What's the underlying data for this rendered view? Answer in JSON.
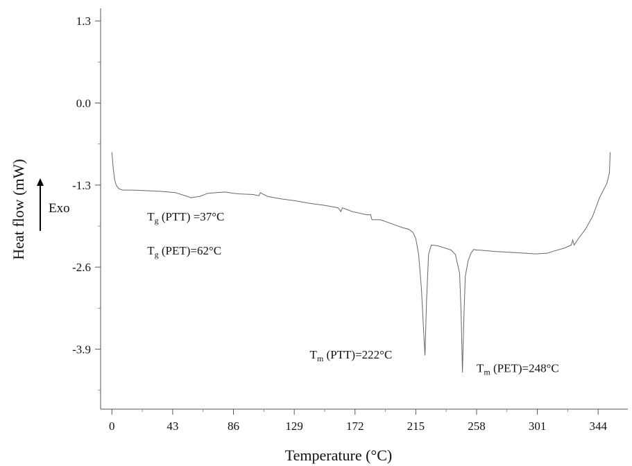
{
  "chart_data": {
    "type": "line",
    "xlabel": "Temperature (°C)",
    "ylabel": "Heat flow (mW)",
    "xlim": [
      -8,
      365
    ],
    "ylim": [
      -4.85,
      1.5
    ],
    "x_ticks": [
      0,
      43,
      86,
      129,
      172,
      215,
      258,
      301,
      344
    ],
    "y_ticks": [
      1.3,
      0.0,
      -1.3,
      -2.6,
      -3.9
    ],
    "grid": false,
    "series": [
      {
        "color": "#666666",
        "x": [
          0,
          1,
          2,
          3,
          5,
          8,
          15,
          25,
          35,
          45,
          52,
          56,
          62,
          68,
          74,
          80,
          86,
          90,
          100,
          104,
          105,
          110,
          120,
          130,
          140,
          150,
          160,
          162,
          163,
          170,
          180,
          183,
          184,
          190,
          200,
          205,
          210,
          213,
          215,
          217,
          219,
          220.5,
          221.5,
          222.5,
          224,
          226,
          230,
          236,
          240,
          243,
          246,
          247,
          248,
          249,
          250,
          252,
          254,
          256,
          258,
          260,
          270,
          285,
          300,
          308,
          312,
          320,
          325,
          326,
          327,
          330,
          335,
          340,
          345,
          350,
          351,
          352,
          352.5
        ],
        "values": [
          -0.78,
          -1.05,
          -1.22,
          -1.3,
          -1.36,
          -1.38,
          -1.38,
          -1.39,
          -1.4,
          -1.42,
          -1.47,
          -1.5,
          -1.48,
          -1.43,
          -1.42,
          -1.41,
          -1.43,
          -1.44,
          -1.45,
          -1.47,
          -1.42,
          -1.48,
          -1.52,
          -1.55,
          -1.59,
          -1.62,
          -1.66,
          -1.72,
          -1.66,
          -1.72,
          -1.77,
          -1.77,
          -1.85,
          -1.85,
          -1.93,
          -1.97,
          -2.0,
          -2.05,
          -2.15,
          -2.4,
          -2.95,
          -3.6,
          -4.0,
          -3.2,
          -2.4,
          -2.25,
          -2.26,
          -2.3,
          -2.33,
          -2.4,
          -2.7,
          -3.3,
          -4.27,
          -3.4,
          -2.75,
          -2.5,
          -2.38,
          -2.32,
          -2.33,
          -2.33,
          -2.35,
          -2.37,
          -2.39,
          -2.38,
          -2.35,
          -2.3,
          -2.25,
          -2.17,
          -2.25,
          -2.15,
          -2.0,
          -1.8,
          -1.5,
          -1.28,
          -1.2,
          -1.1,
          -0.78
        ]
      }
    ],
    "annotations": [
      {
        "main": "T",
        "sub": "g",
        "rest": " (PTT) =37°C",
        "x": 25,
        "y": -1.86
      },
      {
        "main": "T",
        "sub": "g",
        "rest": " (PET)=62°C",
        "x": 25,
        "y": -2.4
      },
      {
        "main": "T",
        "sub": "m",
        "rest": " (PTT)=222°C",
        "x": 140,
        "y": -4.05
      },
      {
        "main": "T",
        "sub": "m",
        "rest": " (PET)=248°C",
        "x": 258,
        "y": -4.26
      }
    ],
    "exo_label": "Exo"
  }
}
